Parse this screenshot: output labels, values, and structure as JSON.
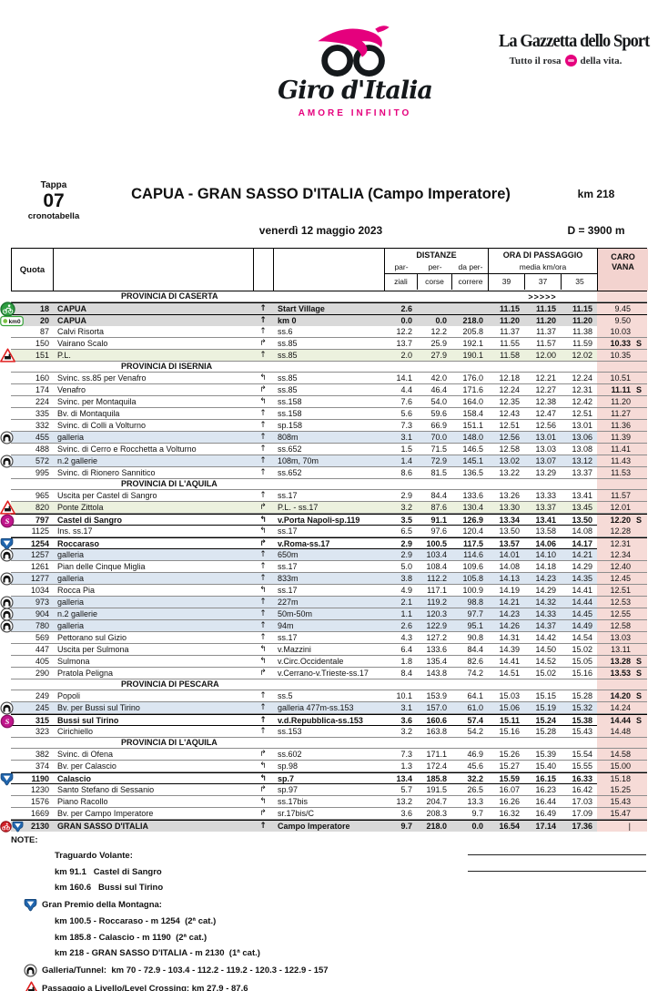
{
  "brand": {
    "giro_name": "Giro d'Italia",
    "giro_sub": "AMORE INFINITO",
    "gazzetta_name": "La Gazzetta dello Sport",
    "gazzetta_sub_left": "Tutto il rosa",
    "gazzetta_sub_right": "della vita.",
    "pink": "#e5007d"
  },
  "stage": {
    "tappa_label": "Tappa",
    "tappa_number": "07",
    "tappa_sub": "cronotabella",
    "title": "CAPUA - GRAN SASSO D'ITALIA (Campo Imperatore)",
    "km_total": "km 218",
    "date": "venerdì 12 maggio 2023",
    "dislivello": "D = 3900 m"
  },
  "table_header": {
    "quota": "Quota",
    "distanze": "DISTANZE",
    "dist_sub1": [
      "par-",
      "per-",
      "da per-"
    ],
    "dist_sub2": [
      "ziali",
      "corse",
      "correre"
    ],
    "ora": "ORA DI PASSAGGIO",
    "media": "media km/ora",
    "speeds": [
      "39",
      "37",
      "35"
    ],
    "caro_line1": "CARO",
    "caro_line2": "VANA",
    "start_arrows": ">>>>>"
  },
  "colors": {
    "carovana_bg": "#f6dbd7",
    "row_gray": "#d9d9d9",
    "row_blue": "#dce6f1",
    "row_green": "#ecf1de",
    "sprint": "#c0168c",
    "gpm_blue": "#2166ae",
    "start_green": "#2e9e41",
    "finish_red": "#d2222a"
  },
  "rows": [
    {
      "t": "p",
      "label": "PROVINCIA DI CASERTA",
      "arrows": true
    },
    {
      "t": "r",
      "icon": "start",
      "q": "18",
      "loc": "CAPUA",
      "dir": "up",
      "road": "Start Village",
      "par": "2.6",
      "per": "",
      "da": "",
      "t39": "11.15",
      "t37": "11.15",
      "t35": "11.15",
      "caro": "9.45",
      "s": "",
      "bg": "gray",
      "hb": true,
      "bold": true
    },
    {
      "t": "r",
      "icon": "km0",
      "q": "20",
      "loc": "CAPUA",
      "dir": "up",
      "road": "km 0",
      "par": "0.0",
      "per": "0.0",
      "da": "218.0",
      "t39": "11.20",
      "t37": "11.20",
      "t35": "11.20",
      "caro": "9.50",
      "s": "",
      "bg": "gray",
      "hb": true,
      "bold": true
    },
    {
      "t": "r",
      "icon": null,
      "q": "87",
      "loc": "Calvi Risorta",
      "dir": "up",
      "road": "ss.6",
      "par": "12.2",
      "per": "12.2",
      "da": "205.8",
      "t39": "11.37",
      "t37": "11.37",
      "t35": "11.38",
      "caro": "10.03",
      "s": ""
    },
    {
      "t": "r",
      "icon": null,
      "q": "150",
      "loc": "Vairano Scalo",
      "dir": "right",
      "road": "ss.85",
      "par": "13.7",
      "per": "25.9",
      "da": "192.1",
      "t39": "11.55",
      "t37": "11.57",
      "t35": "11.59",
      "caro": "10.33",
      "s": "S",
      "caroBold": true
    },
    {
      "t": "r",
      "icon": "pl",
      "q": "151",
      "loc": "P.L.",
      "dir": "up",
      "road": "ss.85",
      "par": "2.0",
      "per": "27.9",
      "da": "190.1",
      "t39": "11.58",
      "t37": "12.00",
      "t35": "12.02",
      "caro": "10.35",
      "s": "",
      "bg": "green"
    },
    {
      "t": "p",
      "label": "PROVINCIA DI ISERNIA"
    },
    {
      "t": "r",
      "icon": null,
      "q": "160",
      "loc": "Svinc. ss.85 per Venafro",
      "dir": "left",
      "road": "ss.85",
      "par": "14.1",
      "per": "42.0",
      "da": "176.0",
      "t39": "12.18",
      "t37": "12.21",
      "t35": "12.24",
      "caro": "10.51",
      "s": ""
    },
    {
      "t": "r",
      "icon": null,
      "q": "174",
      "loc": "Venafro",
      "dir": "right",
      "road": "ss.85",
      "par": "4.4",
      "per": "46.4",
      "da": "171.6",
      "t39": "12.24",
      "t37": "12.27",
      "t35": "12.31",
      "caro": "11.11",
      "s": "S",
      "caroBold": true
    },
    {
      "t": "r",
      "icon": null,
      "q": "224",
      "loc": "Svinc. per Montaquila",
      "dir": "left",
      "road": "ss.158",
      "par": "7.6",
      "per": "54.0",
      "da": "164.0",
      "t39": "12.35",
      "t37": "12.38",
      "t35": "12.42",
      "caro": "11.20",
      "s": ""
    },
    {
      "t": "r",
      "icon": null,
      "q": "335",
      "loc": "Bv. di Montaquila",
      "dir": "up",
      "road": "ss.158",
      "par": "5.6",
      "per": "59.6",
      "da": "158.4",
      "t39": "12.43",
      "t37": "12.47",
      "t35": "12.51",
      "caro": "11.27",
      "s": ""
    },
    {
      "t": "r",
      "icon": null,
      "q": "332",
      "loc": "Svinc. di Colli a Volturno",
      "dir": "up",
      "road": "sp.158",
      "par": "7.3",
      "per": "66.9",
      "da": "151.1",
      "t39": "12.51",
      "t37": "12.56",
      "t35": "13.01",
      "caro": "11.36",
      "s": ""
    },
    {
      "t": "r",
      "icon": "tunnel",
      "q": "455",
      "loc": "galleria",
      "dir": "up",
      "road": "808m",
      "par": "3.1",
      "per": "70.0",
      "da": "148.0",
      "t39": "12.56",
      "t37": "13.01",
      "t35": "13.06",
      "caro": "11.39",
      "s": "",
      "bg": "blue"
    },
    {
      "t": "r",
      "icon": null,
      "q": "488",
      "loc": "Svinc. di Cerro e Rocchetta a Volturno",
      "dir": "up",
      "road": "ss.652",
      "par": "1.5",
      "per": "71.5",
      "da": "146.5",
      "t39": "12.58",
      "t37": "13.03",
      "t35": "13.08",
      "caro": "11.41",
      "s": ""
    },
    {
      "t": "r",
      "icon": "tunnel",
      "q": "572",
      "loc": "n.2 gallerie",
      "dir": "up",
      "road": "108m, 70m",
      "par": "1.4",
      "per": "72.9",
      "da": "145.1",
      "t39": "13.02",
      "t37": "13.07",
      "t35": "13.12",
      "caro": "11.43",
      "s": "",
      "bg": "blue"
    },
    {
      "t": "r",
      "icon": null,
      "q": "995",
      "loc": "Svinc. di Rionero Sannitico",
      "dir": "up",
      "road": "ss.652",
      "par": "8.6",
      "per": "81.5",
      "da": "136.5",
      "t39": "13.22",
      "t37": "13.29",
      "t35": "13.37",
      "caro": "11.53",
      "s": ""
    },
    {
      "t": "p",
      "label": "PROVINCIA DI L'AQUILA"
    },
    {
      "t": "r",
      "icon": null,
      "q": "965",
      "loc": "Uscita per Castel di Sangro",
      "dir": "up",
      "road": "ss.17",
      "par": "2.9",
      "per": "84.4",
      "da": "133.6",
      "t39": "13.26",
      "t37": "13.33",
      "t35": "13.41",
      "caro": "11.57",
      "s": ""
    },
    {
      "t": "r",
      "icon": "pl",
      "q": "820",
      "loc": "Ponte Zittola",
      "dir": "right",
      "road": "P.L. - ss.17",
      "par": "3.2",
      "per": "87.6",
      "da": "130.4",
      "t39": "13.30",
      "t37": "13.37",
      "t35": "13.45",
      "caro": "12.01",
      "s": "",
      "bg": "green"
    },
    {
      "t": "r",
      "icon": "sprint",
      "q": "797",
      "loc": "Castel di Sangro",
      "dir": "left",
      "road": "v.Porta Napoli-sp.119",
      "par": "3.5",
      "per": "91.1",
      "da": "126.9",
      "t39": "13.34",
      "t37": "13.41",
      "t35": "13.50",
      "caro": "12.20",
      "s": "S",
      "hb": true,
      "bold": true,
      "caroBold": true
    },
    {
      "t": "r",
      "icon": null,
      "q": "1125",
      "loc": "Ins. ss.17",
      "dir": "left",
      "road": "ss.17",
      "par": "6.5",
      "per": "97.6",
      "da": "120.4",
      "t39": "13.50",
      "t37": "13.58",
      "t35": "14.08",
      "caro": "12.28",
      "s": ""
    },
    {
      "t": "r",
      "icon": "gpm",
      "q": "1254",
      "loc": "Roccaraso",
      "dir": "right",
      "road": "v.Roma-ss.17",
      "par": "2.9",
      "per": "100.5",
      "da": "117.5",
      "t39": "13.57",
      "t37": "14.06",
      "t35": "14.17",
      "caro": "12.31",
      "s": "",
      "hb": true,
      "bold": true
    },
    {
      "t": "r",
      "icon": "tunnel",
      "q": "1257",
      "loc": "galleria",
      "dir": "up",
      "road": "650m",
      "par": "2.9",
      "per": "103.4",
      "da": "114.6",
      "t39": "14.01",
      "t37": "14.10",
      "t35": "14.21",
      "caro": "12.34",
      "s": "",
      "bg": "blue"
    },
    {
      "t": "r",
      "icon": null,
      "q": "1261",
      "loc": "Pian delle Cinque Miglia",
      "dir": "up",
      "road": "ss.17",
      "par": "5.0",
      "per": "108.4",
      "da": "109.6",
      "t39": "14.08",
      "t37": "14.18",
      "t35": "14.29",
      "caro": "12.40",
      "s": ""
    },
    {
      "t": "r",
      "icon": "tunnel",
      "q": "1277",
      "loc": "galleria",
      "dir": "up",
      "road": "833m",
      "par": "3.8",
      "per": "112.2",
      "da": "105.8",
      "t39": "14.13",
      "t37": "14.23",
      "t35": "14.35",
      "caro": "12.45",
      "s": "",
      "bg": "blue"
    },
    {
      "t": "r",
      "icon": null,
      "q": "1034",
      "loc": "Rocca Pia",
      "dir": "left",
      "road": "ss.17",
      "par": "4.9",
      "per": "117.1",
      "da": "100.9",
      "t39": "14.19",
      "t37": "14.29",
      "t35": "14.41",
      "caro": "12.51",
      "s": ""
    },
    {
      "t": "r",
      "icon": "tunnel",
      "q": "973",
      "loc": "galleria",
      "dir": "up",
      "road": "227m",
      "par": "2.1",
      "per": "119.2",
      "da": "98.8",
      "t39": "14.21",
      "t37": "14.32",
      "t35": "14.44",
      "caro": "12.53",
      "s": "",
      "bg": "blue"
    },
    {
      "t": "r",
      "icon": "tunnel",
      "q": "904",
      "loc": "n.2 gallerie",
      "dir": "up",
      "road": "50m-50m",
      "par": "1.1",
      "per": "120.3",
      "da": "97.7",
      "t39": "14.23",
      "t37": "14.33",
      "t35": "14.45",
      "caro": "12.55",
      "s": "",
      "bg": "blue"
    },
    {
      "t": "r",
      "icon": "tunnel",
      "q": "780",
      "loc": "galleria",
      "dir": "up",
      "road": "94m",
      "par": "2.6",
      "per": "122.9",
      "da": "95.1",
      "t39": "14.26",
      "t37": "14.37",
      "t35": "14.49",
      "caro": "12.58",
      "s": "",
      "bg": "blue"
    },
    {
      "t": "r",
      "icon": null,
      "q": "569",
      "loc": "Pettorano sul Gizio",
      "dir": "up",
      "road": "ss.17",
      "par": "4.3",
      "per": "127.2",
      "da": "90.8",
      "t39": "14.31",
      "t37": "14.42",
      "t35": "14.54",
      "caro": "13.03",
      "s": ""
    },
    {
      "t": "r",
      "icon": null,
      "q": "447",
      "loc": "Uscita per Sulmona",
      "dir": "left",
      "road": "v.Mazzini",
      "par": "6.4",
      "per": "133.6",
      "da": "84.4",
      "t39": "14.39",
      "t37": "14.50",
      "t35": "15.02",
      "caro": "13.11",
      "s": ""
    },
    {
      "t": "r",
      "icon": null,
      "q": "405",
      "loc": "Sulmona",
      "dir": "left",
      "road": "v.Circ.Occidentale",
      "par": "1.8",
      "per": "135.4",
      "da": "82.6",
      "t39": "14.41",
      "t37": "14.52",
      "t35": "15.05",
      "caro": "13.28",
      "s": "S",
      "caroBold": true
    },
    {
      "t": "r",
      "icon": null,
      "q": "290",
      "loc": "Pratola Peligna",
      "dir": "right",
      "road": "v.Cerrano-v.Trieste-ss.17",
      "par": "8.4",
      "per": "143.8",
      "da": "74.2",
      "t39": "14.51",
      "t37": "15.02",
      "t35": "15.16",
      "caro": "13.53",
      "s": "S",
      "caroBold": true
    },
    {
      "t": "p",
      "label": "PROVINCIA DI PESCARA"
    },
    {
      "t": "r",
      "icon": null,
      "q": "249",
      "loc": "Popoli",
      "dir": "up",
      "road": "ss.5",
      "par": "10.1",
      "per": "153.9",
      "da": "64.1",
      "t39": "15.03",
      "t37": "15.15",
      "t35": "15.28",
      "caro": "14.20",
      "s": "S",
      "caroBold": true
    },
    {
      "t": "r",
      "icon": "tunnel",
      "q": "245",
      "loc": "Bv. per Bussi sul Tirino",
      "dir": "up",
      "road": "galleria 477m-ss.153",
      "par": "3.1",
      "per": "157.0",
      "da": "61.0",
      "t39": "15.06",
      "t37": "15.19",
      "t35": "15.32",
      "caro": "14.24",
      "s": "",
      "bg": "blue"
    },
    {
      "t": "r",
      "icon": "sprint",
      "q": "315",
      "loc": "Bussi sul Tirino",
      "dir": "up",
      "road": "v.d.Repubblica-ss.153",
      "par": "3.6",
      "per": "160.6",
      "da": "57.4",
      "t39": "15.11",
      "t37": "15.24",
      "t35": "15.38",
      "caro": "14.44",
      "s": "S",
      "hb": true,
      "bold": true,
      "caroBold": true
    },
    {
      "t": "r",
      "icon": null,
      "q": "323",
      "loc": "Cirichiello",
      "dir": "up",
      "road": "ss.153",
      "par": "3.2",
      "per": "163.8",
      "da": "54.2",
      "t39": "15.16",
      "t37": "15.28",
      "t35": "15.43",
      "caro": "14.48",
      "s": ""
    },
    {
      "t": "p",
      "label": "PROVINCIA DI L'AQUILA"
    },
    {
      "t": "r",
      "icon": null,
      "q": "382",
      "loc": "Svinc. di Ofena",
      "dir": "right",
      "road": "ss.602",
      "par": "7.3",
      "per": "171.1",
      "da": "46.9",
      "t39": "15.26",
      "t37": "15.39",
      "t35": "15.54",
      "caro": "14.58",
      "s": ""
    },
    {
      "t": "r",
      "icon": null,
      "q": "374",
      "loc": "Bv. per Calascio",
      "dir": "left",
      "road": "sp.98",
      "par": "1.3",
      "per": "172.4",
      "da": "45.6",
      "t39": "15.27",
      "t37": "15.40",
      "t35": "15.55",
      "caro": "15.00",
      "s": ""
    },
    {
      "t": "r",
      "icon": "gpm",
      "q": "1190",
      "loc": "Calascio",
      "dir": "left",
      "road": "sp.7",
      "par": "13.4",
      "per": "185.8",
      "da": "32.2",
      "t39": "15.59",
      "t37": "16.15",
      "t35": "16.33",
      "caro": "15.18",
      "s": "",
      "hb": true,
      "bold": true
    },
    {
      "t": "r",
      "icon": null,
      "q": "1230",
      "loc": "Santo Stefano di Sessanio",
      "dir": "right",
      "road": "sp.97",
      "par": "5.7",
      "per": "191.5",
      "da": "26.5",
      "t39": "16.07",
      "t37": "16.23",
      "t35": "16.42",
      "caro": "15.25",
      "s": ""
    },
    {
      "t": "r",
      "icon": null,
      "q": "1576",
      "loc": "Piano Racollo",
      "dir": "left",
      "road": "ss.17bis",
      "par": "13.2",
      "per": "204.7",
      "da": "13.3",
      "t39": "16.26",
      "t37": "16.44",
      "t35": "17.03",
      "caro": "15.43",
      "s": ""
    },
    {
      "t": "r",
      "icon": null,
      "q": "1669",
      "loc": "Bv. per Campo Imperatore",
      "dir": "right",
      "road": "sr.17bis/C",
      "par": "3.6",
      "per": "208.3",
      "da": "9.7",
      "t39": "16.32",
      "t37": "16.49",
      "t35": "17.09",
      "caro": "15.47",
      "s": ""
    },
    {
      "t": "r",
      "icon": "finish_gpm",
      "q": "2130",
      "loc": "GRAN SASSO D'ITALIA",
      "dir": "up",
      "road": "Campo Imperatore",
      "par": "9.7",
      "per": "218.0",
      "da": "0.0",
      "t39": "16.54",
      "t37": "17.14",
      "t35": "17.36",
      "caro": "|",
      "s": "",
      "bg": "gray",
      "hb": true,
      "bold": true,
      "final": true
    }
  ],
  "notes": {
    "title": "NOTE:",
    "lines": [
      {
        "icon": null,
        "text": "Traguardo Volante:"
      },
      {
        "icon": null,
        "text": "km 91.1   Castel di Sangro"
      },
      {
        "icon": null,
        "text": "km 160.6   Bussi sul Tirino"
      },
      {
        "icon": "gpm",
        "text": "Gran Premio della Montagna:"
      },
      {
        "icon": null,
        "text": "km 100.5 - Roccaraso - m 1254  (2ª cat.)"
      },
      {
        "icon": null,
        "text": "km 185.8 - Calascio - m 1190  (2ª cat.)"
      },
      {
        "icon": null,
        "text": "km 218 - GRAN SASSO D'ITALIA - m 2130  (1ª cat.)"
      },
      {
        "icon": "tunnel",
        "text": "Galleria/Tunnel:  km 70 - 72.9 - 103.4 - 112.2 - 119.2 - 120.3 - 122.9 - 157"
      },
      {
        "icon": "pl",
        "text": "Passaggio a Livello/Level Crossing: km 27.9 - 87.6"
      }
    ]
  }
}
